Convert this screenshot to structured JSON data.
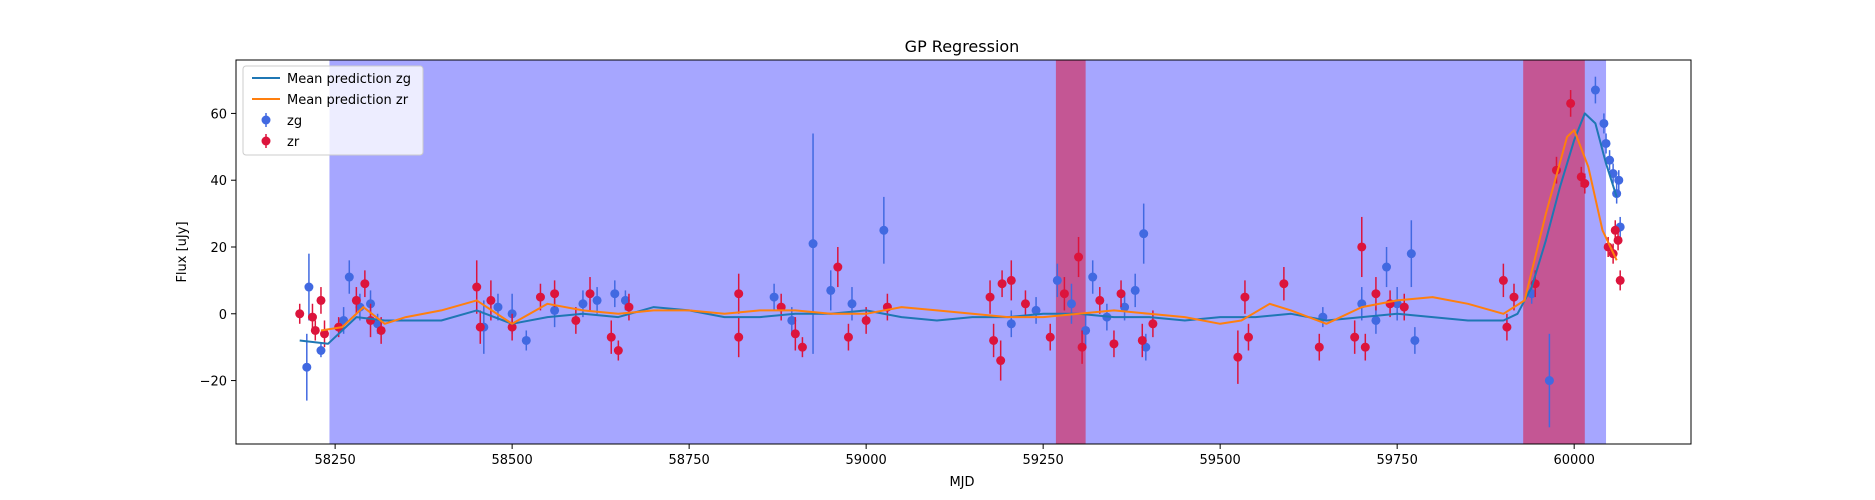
{
  "chart_data": {
    "type": "scatter",
    "title": "GP Regression",
    "xlabel": "MJD",
    "ylabel": "Flux [uJy]",
    "xlim": [
      58110,
      60165
    ],
    "ylim": [
      -39,
      76
    ],
    "xticks": [
      58250,
      58500,
      58750,
      59000,
      59250,
      59500,
      59750,
      60000
    ],
    "yticks": [
      -20,
      0,
      20,
      40,
      60
    ],
    "grid": false,
    "legend": {
      "position": "top-left",
      "entries": [
        {
          "label": "Mean prediction zg",
          "kind": "line",
          "color": "#1f77b4"
        },
        {
          "label": "Mean prediction zr",
          "kind": "line",
          "color": "#ff7f0e"
        },
        {
          "label": "zg",
          "kind": "marker",
          "color": "#4169e1"
        },
        {
          "label": "zr",
          "kind": "marker",
          "color": "#dc143c"
        }
      ]
    },
    "shaded_regions": [
      {
        "x0": 58242,
        "x1": 60045,
        "color": "#0000ff",
        "alpha": 0.35
      },
      {
        "x0": 59268,
        "x1": 59310,
        "color": "#dc143c",
        "alpha": 0.55
      },
      {
        "x0": 59928,
        "x1": 60015,
        "color": "#dc143c",
        "alpha": 0.55
      }
    ],
    "series": [
      {
        "name": "Mean prediction zg",
        "kind": "line",
        "color": "#1f77b4",
        "x": [
          58200,
          58240,
          58280,
          58320,
          58350,
          58400,
          58450,
          58500,
          58550,
          58600,
          58650,
          58700,
          58750,
          58800,
          58850,
          58900,
          58950,
          59000,
          59050,
          59100,
          59150,
          59200,
          59250,
          59300,
          59350,
          59400,
          59450,
          59500,
          59550,
          59600,
          59650,
          59700,
          59750,
          59800,
          59850,
          59880,
          59900,
          59920,
          59940,
          59960,
          59980,
          60000,
          60015,
          60030,
          60045,
          60060
        ],
        "y": [
          -8,
          -9,
          -1,
          -2,
          -2,
          -2,
          1,
          -3,
          -1,
          0,
          -1,
          2,
          1,
          -1,
          -1,
          0,
          0,
          1,
          -1,
          -2,
          -1,
          -1,
          0,
          0,
          -1,
          -1,
          -2,
          -1,
          -1,
          0,
          -2,
          -1,
          0,
          -1,
          -2,
          -2,
          -2,
          0,
          8,
          22,
          38,
          52,
          60,
          57,
          45,
          35
        ]
      },
      {
        "name": "Mean prediction zr",
        "kind": "line",
        "color": "#ff7f0e",
        "x": [
          58230,
          58260,
          58290,
          58320,
          58350,
          58400,
          58450,
          58500,
          58550,
          58600,
          58650,
          58700,
          58750,
          58800,
          58850,
          58900,
          58950,
          59000,
          59050,
          59100,
          59150,
          59200,
          59250,
          59300,
          59350,
          59400,
          59450,
          59500,
          59530,
          59570,
          59600,
          59650,
          59700,
          59750,
          59800,
          59850,
          59900,
          59930,
          59960,
          59990,
          60000,
          60020,
          60040,
          60060
        ],
        "y": [
          -5,
          -4,
          2,
          -3,
          -1,
          1,
          4,
          -3,
          3,
          1,
          0,
          1,
          1,
          0,
          1,
          1,
          0,
          0,
          2,
          1,
          0,
          -1,
          -1,
          0,
          1,
          0,
          -1,
          -3,
          -2,
          3,
          1,
          -3,
          2,
          4,
          5,
          3,
          0,
          4,
          30,
          53,
          55,
          44,
          25,
          16
        ]
      },
      {
        "name": "zg",
        "kind": "errorbar",
        "color": "#4169e1",
        "points": [
          {
            "x": 58210,
            "y": -16,
            "err": 10
          },
          {
            "x": 58213,
            "y": 8,
            "err": 10
          },
          {
            "x": 58230,
            "y": -11,
            "err": 2
          },
          {
            "x": 58262,
            "y": -2,
            "err": 4
          },
          {
            "x": 58270,
            "y": 11,
            "err": 5
          },
          {
            "x": 58285,
            "y": 2,
            "err": 4
          },
          {
            "x": 58300,
            "y": 3,
            "err": 4
          },
          {
            "x": 58310,
            "y": -3,
            "err": 3
          },
          {
            "x": 58460,
            "y": -4,
            "err": 8
          },
          {
            "x": 58480,
            "y": 2,
            "err": 4
          },
          {
            "x": 58500,
            "y": 0,
            "err": 6
          },
          {
            "x": 58520,
            "y": -8,
            "err": 3
          },
          {
            "x": 58560,
            "y": 1,
            "err": 5
          },
          {
            "x": 58600,
            "y": 3,
            "err": 4
          },
          {
            "x": 58620,
            "y": 4,
            "err": 4
          },
          {
            "x": 58645,
            "y": 6,
            "err": 4
          },
          {
            "x": 58660,
            "y": 4,
            "err": 3
          },
          {
            "x": 58870,
            "y": 5,
            "err": 4
          },
          {
            "x": 58895,
            "y": -2,
            "err": 4
          },
          {
            "x": 58925,
            "y": 21,
            "err": 33
          },
          {
            "x": 58950,
            "y": 7,
            "err": 6
          },
          {
            "x": 58980,
            "y": 3,
            "err": 5
          },
          {
            "x": 59025,
            "y": 25,
            "err": 10
          },
          {
            "x": 59205,
            "y": -3,
            "err": 4
          },
          {
            "x": 59240,
            "y": 1,
            "err": 4
          },
          {
            "x": 59270,
            "y": 10,
            "err": 5
          },
          {
            "x": 59290,
            "y": 3,
            "err": 6
          },
          {
            "x": 59310,
            "y": -5,
            "err": 5
          },
          {
            "x": 59320,
            "y": 11,
            "err": 5
          },
          {
            "x": 59340,
            "y": -1,
            "err": 4
          },
          {
            "x": 59365,
            "y": 2,
            "err": 4
          },
          {
            "x": 59380,
            "y": 7,
            "err": 5
          },
          {
            "x": 59392,
            "y": 24,
            "err": 9
          },
          {
            "x": 59395,
            "y": -10,
            "err": 4
          },
          {
            "x": 59645,
            "y": -1,
            "err": 3
          },
          {
            "x": 59700,
            "y": 3,
            "err": 5
          },
          {
            "x": 59720,
            "y": -2,
            "err": 4
          },
          {
            "x": 59735,
            "y": 14,
            "err": 6
          },
          {
            "x": 59750,
            "y": 3,
            "err": 5
          },
          {
            "x": 59770,
            "y": 18,
            "err": 10
          },
          {
            "x": 59775,
            "y": -8,
            "err": 4
          },
          {
            "x": 59940,
            "y": 6,
            "err": 3
          },
          {
            "x": 59965,
            "y": -20,
            "err": 14
          },
          {
            "x": 60030,
            "y": 67,
            "err": 4
          },
          {
            "x": 60042,
            "y": 57,
            "err": 3
          },
          {
            "x": 60045,
            "y": 51,
            "err": 3
          },
          {
            "x": 60050,
            "y": 46,
            "err": 3
          },
          {
            "x": 60055,
            "y": 42,
            "err": 3
          },
          {
            "x": 60060,
            "y": 36,
            "err": 3
          },
          {
            "x": 60063,
            "y": 40,
            "err": 3
          },
          {
            "x": 60065,
            "y": 26,
            "err": 3
          }
        ]
      },
      {
        "name": "zr",
        "kind": "errorbar",
        "color": "#dc143c",
        "points": [
          {
            "x": 58200,
            "y": 0,
            "err": 3
          },
          {
            "x": 58218,
            "y": -1,
            "err": 4
          },
          {
            "x": 58222,
            "y": -5,
            "err": 3
          },
          {
            "x": 58230,
            "y": 4,
            "err": 4
          },
          {
            "x": 58235,
            "y": -6,
            "err": 4
          },
          {
            "x": 58255,
            "y": -4,
            "err": 3
          },
          {
            "x": 58280,
            "y": 4,
            "err": 4
          },
          {
            "x": 58292,
            "y": 9,
            "err": 4
          },
          {
            "x": 58300,
            "y": -2,
            "err": 5
          },
          {
            "x": 58315,
            "y": -5,
            "err": 4
          },
          {
            "x": 58450,
            "y": 8,
            "err": 8
          },
          {
            "x": 58455,
            "y": -4,
            "err": 5
          },
          {
            "x": 58470,
            "y": 4,
            "err": 6
          },
          {
            "x": 58500,
            "y": -4,
            "err": 4
          },
          {
            "x": 58540,
            "y": 5,
            "err": 4
          },
          {
            "x": 58560,
            "y": 6,
            "err": 4
          },
          {
            "x": 58590,
            "y": -2,
            "err": 4
          },
          {
            "x": 58610,
            "y": 6,
            "err": 5
          },
          {
            "x": 58640,
            "y": -7,
            "err": 5
          },
          {
            "x": 58650,
            "y": -11,
            "err": 3
          },
          {
            "x": 58665,
            "y": 2,
            "err": 4
          },
          {
            "x": 58820,
            "y": 6,
            "err": 6
          },
          {
            "x": 58820,
            "y": -7,
            "err": 6
          },
          {
            "x": 58880,
            "y": 2,
            "err": 4
          },
          {
            "x": 58900,
            "y": -6,
            "err": 5
          },
          {
            "x": 58910,
            "y": -10,
            "err": 3
          },
          {
            "x": 58960,
            "y": 14,
            "err": 6
          },
          {
            "x": 58975,
            "y": -7,
            "err": 4
          },
          {
            "x": 59000,
            "y": -2,
            "err": 4
          },
          {
            "x": 59030,
            "y": 2,
            "err": 4
          },
          {
            "x": 59175,
            "y": 5,
            "err": 5
          },
          {
            "x": 59180,
            "y": -8,
            "err": 5
          },
          {
            "x": 59190,
            "y": -14,
            "err": 6
          },
          {
            "x": 59192,
            "y": 9,
            "err": 4
          },
          {
            "x": 59205,
            "y": 10,
            "err": 6
          },
          {
            "x": 59225,
            "y": 3,
            "err": 4
          },
          {
            "x": 59260,
            "y": -7,
            "err": 4
          },
          {
            "x": 59280,
            "y": 6,
            "err": 5
          },
          {
            "x": 59300,
            "y": 17,
            "err": 6
          },
          {
            "x": 59305,
            "y": -10,
            "err": 5
          },
          {
            "x": 59330,
            "y": 4,
            "err": 4
          },
          {
            "x": 59350,
            "y": -9,
            "err": 4
          },
          {
            "x": 59360,
            "y": 6,
            "err": 4
          },
          {
            "x": 59390,
            "y": -8,
            "err": 5
          },
          {
            "x": 59405,
            "y": -3,
            "err": 4
          },
          {
            "x": 59525,
            "y": -13,
            "err": 8
          },
          {
            "x": 59535,
            "y": 5,
            "err": 5
          },
          {
            "x": 59540,
            "y": -7,
            "err": 4
          },
          {
            "x": 59590,
            "y": 9,
            "err": 5
          },
          {
            "x": 59640,
            "y": -10,
            "err": 4
          },
          {
            "x": 59690,
            "y": -7,
            "err": 5
          },
          {
            "x": 59700,
            "y": 20,
            "err": 9
          },
          {
            "x": 59705,
            "y": -10,
            "err": 4
          },
          {
            "x": 59720,
            "y": 6,
            "err": 5
          },
          {
            "x": 59740,
            "y": 3,
            "err": 4
          },
          {
            "x": 59760,
            "y": 2,
            "err": 4
          },
          {
            "x": 59900,
            "y": 10,
            "err": 5
          },
          {
            "x": 59905,
            "y": -4,
            "err": 4
          },
          {
            "x": 59915,
            "y": 5,
            "err": 4
          },
          {
            "x": 59945,
            "y": 9,
            "err": 4
          },
          {
            "x": 59975,
            "y": 43,
            "err": 4
          },
          {
            "x": 59995,
            "y": 63,
            "err": 4
          },
          {
            "x": 60010,
            "y": 41,
            "err": 3
          },
          {
            "x": 60015,
            "y": 39,
            "err": 3
          },
          {
            "x": 60048,
            "y": 20,
            "err": 3
          },
          {
            "x": 60055,
            "y": 18,
            "err": 3
          },
          {
            "x": 60058,
            "y": 25,
            "err": 3
          },
          {
            "x": 60062,
            "y": 22,
            "err": 3
          },
          {
            "x": 60065,
            "y": 10,
            "err": 3
          }
        ]
      }
    ]
  }
}
